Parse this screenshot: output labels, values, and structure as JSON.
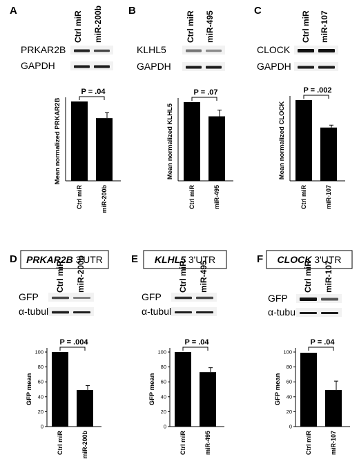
{
  "panels": [
    {
      "letter": "A",
      "lanes": [
        "Ctrl miR",
        "miR-200b"
      ],
      "blot_target": "PRKAR2B",
      "blot_control": "GAPDH"
    },
    {
      "letter": "B",
      "lanes": [
        "Ctrl miR",
        "miR-495"
      ],
      "blot_target": "KLHL5",
      "blot_control": "GAPDH"
    },
    {
      "letter": "C",
      "lanes": [
        "Ctrl miR",
        "miR-107"
      ],
      "blot_target": "CLOCK",
      "blot_control": "GAPDH"
    },
    {
      "letter": "D",
      "utr_gene": "PRKAR2B",
      "utr_suffix": " 3'UTR",
      "lanes": [
        "Ctrl miR",
        "miR-200b"
      ],
      "blot_target": "GFP",
      "blot_control": "α-tubulin"
    },
    {
      "letter": "E",
      "utr_gene": "KLHL5",
      "utr_suffix": " 3'UTR",
      "lanes": [
        "Ctrl miR",
        "miR-495"
      ],
      "blot_target": "GFP",
      "blot_control": "α-tubulin"
    },
    {
      "letter": "F",
      "utr_gene": "CLOCK",
      "utr_suffix": " 3'UTR",
      "lanes": [
        "Ctrl miR",
        "miR-107"
      ],
      "blot_target": "GFP",
      "blot_control": "α-tubulin"
    }
  ],
  "chart_data": [
    {
      "panel": "A",
      "type": "bar",
      "categories": [
        "Ctrl miR",
        "miR-200b"
      ],
      "values": [
        100,
        79
      ],
      "errors": [
        0,
        7
      ],
      "ylabel": "Mean normalized PRKAR2B",
      "ylim": [
        0,
        100
      ],
      "yticks": [],
      "pvalue": "P = .04"
    },
    {
      "panel": "B",
      "type": "bar",
      "categories": [
        "Ctrl miR",
        "miR-495"
      ],
      "values": [
        100,
        82
      ],
      "errors": [
        0,
        8
      ],
      "ylabel": "Mean normalized KLHL5",
      "ylim": [
        0,
        100
      ],
      "yticks": [],
      "pvalue": "P = .07"
    },
    {
      "panel": "C",
      "type": "bar",
      "categories": [
        "Ctrl miR",
        "miR-107"
      ],
      "values": [
        100,
        66
      ],
      "errors": [
        0,
        3
      ],
      "ylabel": "Mean normalized CLOCK",
      "ylim": [
        0,
        100
      ],
      "yticks": [],
      "pvalue": "P = .002"
    },
    {
      "panel": "D",
      "type": "bar",
      "categories": [
        "Ctrl miR",
        "miR-200b"
      ],
      "values": [
        100,
        49
      ],
      "errors": [
        0,
        6
      ],
      "ylabel": "GFP mean",
      "ylim": [
        0,
        100
      ],
      "yticks": [
        "0",
        "20",
        "40",
        "60",
        "80",
        "100"
      ],
      "pvalue": "P = .004"
    },
    {
      "panel": "E",
      "type": "bar",
      "categories": [
        "Ctrl miR",
        "miR-495"
      ],
      "values": [
        100,
        73
      ],
      "errors": [
        0,
        6
      ],
      "ylabel": "GFP mean",
      "ylim": [
        0,
        100
      ],
      "yticks": [
        "0",
        "20",
        "40",
        "60",
        "80",
        "100"
      ],
      "pvalue": "P = .04"
    },
    {
      "panel": "F",
      "type": "bar",
      "categories": [
        "Ctrl miR",
        "miR-107"
      ],
      "values": [
        99,
        49
      ],
      "errors": [
        0,
        12
      ],
      "ylabel": "GFP mean",
      "ylim": [
        0,
        100
      ],
      "yticks": [
        "0",
        "20",
        "40",
        "60",
        "80",
        "100"
      ],
      "pvalue": "P = .04"
    }
  ]
}
